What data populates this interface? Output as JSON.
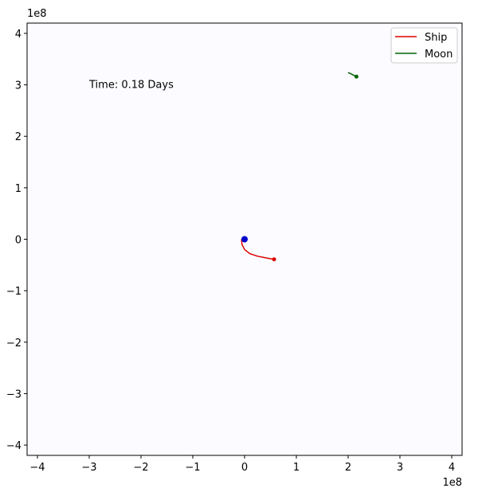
{
  "chart_data": {
    "type": "line",
    "axis_exponent_x": "1e8",
    "axis_exponent_y": "1e8",
    "xlim": [
      -4.2,
      4.2
    ],
    "ylim": [
      -4.2,
      4.2
    ],
    "x_ticks": [
      -4,
      -3,
      -2,
      -1,
      0,
      1,
      2,
      3,
      4
    ],
    "y_ticks": [
      -4,
      -3,
      -2,
      -1,
      0,
      1,
      2,
      3,
      4
    ],
    "x_tick_labels": [
      "−4",
      "−3",
      "−2",
      "−1",
      "0",
      "1",
      "2",
      "3",
      "4"
    ],
    "y_tick_labels": [
      "−4",
      "−3",
      "−2",
      "−1",
      "0",
      "1",
      "2",
      "3",
      "4"
    ],
    "grid": false,
    "legend_placement": "top-right",
    "annotation": "Time: 0.18 Days",
    "earth": {
      "x": 0.0,
      "y": 0.0,
      "color": "#0000cc"
    },
    "series": [
      {
        "name": "Ship",
        "color": "#dd0000",
        "x": [
          -0.06,
          -0.05,
          0.0,
          0.1,
          0.25,
          0.45,
          0.57
        ],
        "y": [
          0.0,
          -0.1,
          -0.2,
          -0.28,
          -0.33,
          -0.37,
          -0.39
        ]
      },
      {
        "name": "Moon",
        "color": "#006400",
        "x": [
          2.0,
          2.08,
          2.16
        ],
        "y": [
          3.24,
          3.2,
          3.16
        ]
      }
    ]
  }
}
